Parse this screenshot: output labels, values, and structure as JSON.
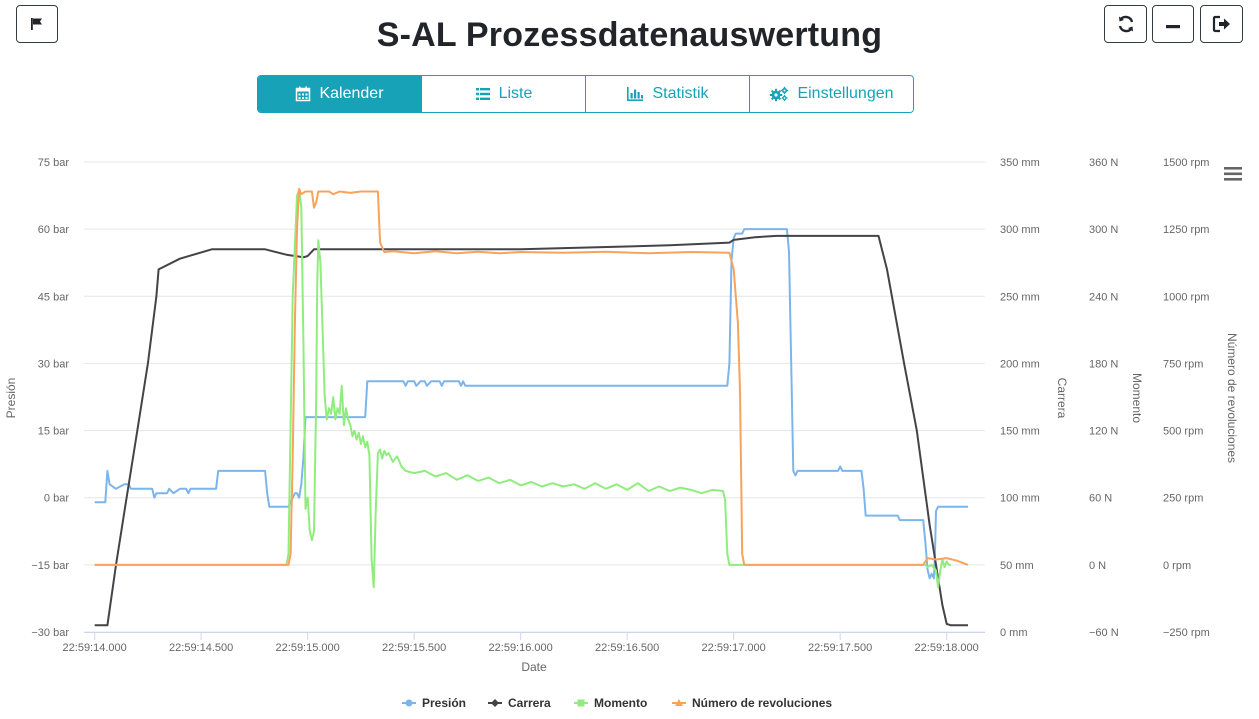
{
  "header": {
    "title": "S-AL Prozessdatenauswertung",
    "flag_icon": "flag-icon",
    "refresh_icon": "refresh-icon",
    "minimize_icon": "minimize-icon",
    "logout_icon": "logout-icon"
  },
  "tabs": [
    {
      "label": "Kalender",
      "icon": "calendar-icon",
      "active": true
    },
    {
      "label": "Liste",
      "icon": "list-icon",
      "active": false
    },
    {
      "label": "Statistik",
      "icon": "bar-chart-icon",
      "active": false
    },
    {
      "label": "Einstellungen",
      "icon": "gears-icon",
      "active": false
    }
  ],
  "colors": {
    "accent": "#17a2b8",
    "presion": "#7cb5ec",
    "carrera": "#434348",
    "momento": "#90ed7d",
    "revoluciones": "#f7a35c"
  },
  "chart_data": {
    "type": "line",
    "xlabel": "Date",
    "x_ticks": [
      "22:59:14.000",
      "22:59:14.500",
      "22:59:15.000",
      "22:59:15.500",
      "22:59:16.000",
      "22:59:16.500",
      "22:59:17.000",
      "22:59:17.500",
      "22:59:18.000"
    ],
    "x_range": [
      -0.05,
      4.18
    ],
    "grid": true,
    "legend_position": "bottom",
    "menu_icon": "menu-icon",
    "axes": [
      {
        "title": "Presión",
        "unit": "bar",
        "range": [
          -30,
          75
        ],
        "ticks": [
          "75 bar",
          "60 bar",
          "45 bar",
          "30 bar",
          "15 bar",
          "0 bar",
          "−15 bar",
          "−30 bar"
        ]
      },
      {
        "title": "Carrera",
        "unit": "mm",
        "range": [
          0,
          350
        ],
        "ticks": [
          "350 mm",
          "300 mm",
          "250 mm",
          "200 mm",
          "150 mm",
          "100 mm",
          "50 mm",
          "0 mm"
        ]
      },
      {
        "title": "Momento",
        "unit": "N",
        "range": [
          -60,
          360
        ],
        "ticks": [
          "360 N",
          "300 N",
          "240 N",
          "180 N",
          "120 N",
          "60 N",
          "0 N",
          "−60 N"
        ]
      },
      {
        "title": "Número de revoluciones",
        "unit": "rpm",
        "range": [
          -250,
          1500
        ],
        "ticks": [
          "1500 rpm",
          "1250 rpm",
          "1000 rpm",
          "750 rpm",
          "500 rpm",
          "250 rpm",
          "0 rpm",
          "−250 rpm"
        ]
      }
    ],
    "series": [
      {
        "name": "Presión",
        "axis": 0,
        "points": [
          [
            0,
            -1
          ],
          [
            0.05,
            -1
          ],
          [
            0.06,
            6
          ],
          [
            0.07,
            3
          ],
          [
            0.1,
            2
          ],
          [
            0.14,
            3
          ],
          [
            0.16,
            3
          ],
          [
            0.17,
            2
          ],
          [
            0.27,
            2
          ],
          [
            0.28,
            0
          ],
          [
            0.29,
            1
          ],
          [
            0.34,
            1
          ],
          [
            0.35,
            2
          ],
          [
            0.37,
            1
          ],
          [
            0.4,
            2
          ],
          [
            0.43,
            2
          ],
          [
            0.44,
            1
          ],
          [
            0.45,
            2
          ],
          [
            0.57,
            2
          ],
          [
            0.58,
            6
          ],
          [
            0.8,
            6
          ],
          [
            0.81,
            1
          ],
          [
            0.82,
            -2
          ],
          [
            0.91,
            -2
          ],
          [
            0.92,
            -1
          ],
          [
            0.94,
            1
          ],
          [
            0.95,
            1
          ],
          [
            0.96,
            0
          ],
          [
            0.97,
            3
          ],
          [
            0.98,
            9
          ],
          [
            0.99,
            18
          ],
          [
            1.27,
            18
          ],
          [
            1.28,
            26
          ],
          [
            1.45,
            26
          ],
          [
            1.46,
            25
          ],
          [
            1.47,
            26
          ],
          [
            1.5,
            26
          ],
          [
            1.51,
            25
          ],
          [
            1.53,
            26
          ],
          [
            1.55,
            26
          ],
          [
            1.56,
            25
          ],
          [
            1.58,
            26
          ],
          [
            1.62,
            26
          ],
          [
            1.63,
            25
          ],
          [
            1.64,
            26
          ],
          [
            1.71,
            26
          ],
          [
            1.72,
            25
          ],
          [
            1.73,
            26
          ],
          [
            1.74,
            25
          ],
          [
            2.97,
            25
          ],
          [
            2.98,
            30
          ],
          [
            2.99,
            53
          ],
          [
            3.0,
            58
          ],
          [
            3.01,
            59
          ],
          [
            3.04,
            59
          ],
          [
            3.05,
            60
          ],
          [
            3.25,
            60
          ],
          [
            3.26,
            55
          ],
          [
            3.27,
            30
          ],
          [
            3.28,
            6
          ],
          [
            3.29,
            5
          ],
          [
            3.3,
            6
          ],
          [
            3.49,
            6
          ],
          [
            3.5,
            7
          ],
          [
            3.51,
            6
          ],
          [
            3.6,
            6
          ],
          [
            3.61,
            2
          ],
          [
            3.62,
            -4
          ],
          [
            3.77,
            -4
          ],
          [
            3.78,
            -5
          ],
          [
            3.89,
            -5
          ],
          [
            3.9,
            -10
          ],
          [
            3.91,
            -16
          ],
          [
            3.92,
            -18
          ],
          [
            3.93,
            -17
          ],
          [
            3.94,
            -18
          ],
          [
            3.945,
            -13
          ],
          [
            3.95,
            -3
          ],
          [
            3.96,
            -2
          ],
          [
            4.1,
            -2
          ]
        ]
      },
      {
        "name": "Carrera",
        "axis": 1,
        "points": [
          [
            0,
            5
          ],
          [
            0.06,
            5
          ],
          [
            0.1,
            50
          ],
          [
            0.15,
            100
          ],
          [
            0.2,
            150
          ],
          [
            0.25,
            200
          ],
          [
            0.29,
            250
          ],
          [
            0.3,
            270
          ],
          [
            0.4,
            278
          ],
          [
            0.55,
            285
          ],
          [
            0.8,
            285
          ],
          [
            0.9,
            281
          ],
          [
            0.98,
            279
          ],
          [
            1.0,
            280
          ],
          [
            1.03,
            285
          ],
          [
            1.2,
            285
          ],
          [
            2.0,
            285
          ],
          [
            2.7,
            288
          ],
          [
            2.98,
            290
          ],
          [
            3.0,
            292
          ],
          [
            3.1,
            294
          ],
          [
            3.2,
            295
          ],
          [
            3.68,
            295
          ],
          [
            3.72,
            270
          ],
          [
            3.8,
            200
          ],
          [
            3.86,
            150
          ],
          [
            3.92,
            80
          ],
          [
            3.98,
            20
          ],
          [
            4.0,
            6
          ],
          [
            4.02,
            5
          ],
          [
            4.1,
            5
          ]
        ]
      },
      {
        "name": "Momento",
        "axis": 2,
        "points": [
          [
            0,
            0
          ],
          [
            0.9,
            0
          ],
          [
            0.91,
            10
          ],
          [
            0.93,
            240
          ],
          [
            0.95,
            330
          ],
          [
            0.96,
            335
          ],
          [
            0.97,
            320
          ],
          [
            0.98,
            200
          ],
          [
            0.99,
            50
          ],
          [
            1.0,
            60
          ],
          [
            1.01,
            30
          ],
          [
            1.02,
            22
          ],
          [
            1.03,
            30
          ],
          [
            1.04,
            150
          ],
          [
            1.045,
            250
          ],
          [
            1.05,
            290
          ],
          [
            1.06,
            270
          ],
          [
            1.07,
            210
          ],
          [
            1.08,
            150
          ],
          [
            1.09,
            130
          ],
          [
            1.1,
            140
          ],
          [
            1.11,
            135
          ],
          [
            1.12,
            150
          ],
          [
            1.13,
            130
          ],
          [
            1.14,
            140
          ],
          [
            1.15,
            135
          ],
          [
            1.16,
            160
          ],
          [
            1.17,
            125
          ],
          [
            1.18,
            140
          ],
          [
            1.19,
            130
          ],
          [
            1.2,
            125
          ],
          [
            1.21,
            115
          ],
          [
            1.22,
            120
          ],
          [
            1.23,
            112
          ],
          [
            1.24,
            118
          ],
          [
            1.25,
            108
          ],
          [
            1.26,
            115
          ],
          [
            1.27,
            105
          ],
          [
            1.28,
            110
          ],
          [
            1.29,
            98
          ],
          [
            1.3,
            5
          ],
          [
            1.31,
            -20
          ],
          [
            1.32,
            50
          ],
          [
            1.33,
            100
          ],
          [
            1.34,
            103
          ],
          [
            1.35,
            95
          ],
          [
            1.36,
            102
          ],
          [
            1.37,
            98
          ],
          [
            1.38,
            100
          ],
          [
            1.4,
            92
          ],
          [
            1.42,
            97
          ],
          [
            1.44,
            88
          ],
          [
            1.46,
            84
          ],
          [
            1.5,
            82
          ],
          [
            1.55,
            84
          ],
          [
            1.6,
            79
          ],
          [
            1.65,
            82
          ],
          [
            1.7,
            76
          ],
          [
            1.75,
            80
          ],
          [
            1.8,
            75
          ],
          [
            1.85,
            78
          ],
          [
            1.9,
            73
          ],
          [
            1.95,
            76
          ],
          [
            2.0,
            71
          ],
          [
            2.05,
            74
          ],
          [
            2.1,
            70
          ],
          [
            2.15,
            73
          ],
          [
            2.2,
            70
          ],
          [
            2.25,
            72
          ],
          [
            2.3,
            68
          ],
          [
            2.35,
            73
          ],
          [
            2.4,
            68
          ],
          [
            2.45,
            72
          ],
          [
            2.5,
            67
          ],
          [
            2.55,
            73
          ],
          [
            2.6,
            66
          ],
          [
            2.65,
            70
          ],
          [
            2.7,
            66
          ],
          [
            2.75,
            69
          ],
          [
            2.8,
            67
          ],
          [
            2.85,
            64
          ],
          [
            2.9,
            67
          ],
          [
            2.95,
            66
          ],
          [
            2.96,
            58
          ],
          [
            2.97,
            10
          ],
          [
            2.98,
            0
          ],
          [
            3.0,
            0
          ],
          [
            3.5,
            0
          ],
          [
            3.9,
            0
          ],
          [
            3.91,
            -2
          ],
          [
            3.93,
            0
          ],
          [
            3.95,
            -5
          ],
          [
            3.96,
            -20
          ],
          [
            3.97,
            -5
          ],
          [
            3.98,
            5
          ],
          [
            3.99,
            -2
          ],
          [
            4.0,
            3
          ],
          [
            4.01,
            0
          ],
          [
            4.02,
            0
          ]
        ]
      },
      {
        "name": "Número de revoluciones",
        "axis": 3,
        "points": [
          [
            0,
            0
          ],
          [
            0.91,
            0
          ],
          [
            0.92,
            40
          ],
          [
            0.93,
            400
          ],
          [
            0.94,
            900
          ],
          [
            0.95,
            1250
          ],
          [
            0.96,
            1400
          ],
          [
            0.97,
            1380
          ],
          [
            0.99,
            1390
          ],
          [
            1.02,
            1390
          ],
          [
            1.03,
            1330
          ],
          [
            1.04,
            1350
          ],
          [
            1.05,
            1390
          ],
          [
            1.1,
            1390
          ],
          [
            1.12,
            1380
          ],
          [
            1.15,
            1390
          ],
          [
            1.2,
            1385
          ],
          [
            1.25,
            1390
          ],
          [
            1.33,
            1390
          ],
          [
            1.34,
            1200
          ],
          [
            1.36,
            1165
          ],
          [
            1.4,
            1168
          ],
          [
            1.5,
            1160
          ],
          [
            1.6,
            1168
          ],
          [
            1.7,
            1160
          ],
          [
            1.8,
            1166
          ],
          [
            1.9,
            1160
          ],
          [
            2.0,
            1165
          ],
          [
            2.2,
            1162
          ],
          [
            2.4,
            1166
          ],
          [
            2.6,
            1160
          ],
          [
            2.8,
            1165
          ],
          [
            2.98,
            1162
          ],
          [
            3.0,
            1100
          ],
          [
            3.02,
            900
          ],
          [
            3.03,
            650
          ],
          [
            3.04,
            40
          ],
          [
            3.05,
            0
          ],
          [
            3.2,
            0
          ],
          [
            3.5,
            0
          ],
          [
            3.89,
            0
          ],
          [
            3.91,
            25
          ],
          [
            3.95,
            20
          ],
          [
            4.0,
            25
          ],
          [
            4.05,
            15
          ],
          [
            4.1,
            0
          ]
        ]
      }
    ]
  }
}
